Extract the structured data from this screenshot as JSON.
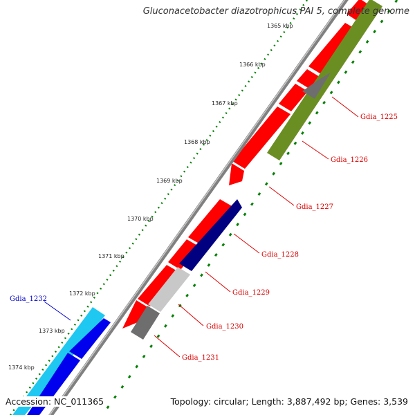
{
  "title": "Gluconacetobacter diazotrophicus PAI 5, complete genome",
  "footer": {
    "accession": "Accession: NC_011365",
    "summary": "Topology: circular; Length: 3,887,492 bp; Genes: 3,539"
  },
  "colors": {
    "red": "#ff0000",
    "olive": "#6b8e23",
    "navy": "#000080",
    "blue": "#0000ee",
    "light_blue": "#1ec8f0",
    "gray": "#6e6e6e",
    "light_gray": "#c8c8c8",
    "backbone": "#808080",
    "tick_green": "#008000",
    "label_red": "#dd0000",
    "label_blue": "#0000cc"
  },
  "ticks": [
    "1365 kbp",
    "1366 kbp",
    "1367 kbp",
    "1368 kbp",
    "1369 kbp",
    "1370 kbp",
    "1371 kbp",
    "1372 kbp",
    "1373 kbp",
    "1374 kbp"
  ],
  "gene_labels": [
    {
      "name": "Gdia_1225",
      "color": "red"
    },
    {
      "name": "Gdia_1226",
      "color": "red"
    },
    {
      "name": "Gdia_1227",
      "color": "red"
    },
    {
      "name": "Gdia_1228",
      "color": "red"
    },
    {
      "name": "Gdia_1229",
      "color": "red"
    },
    {
      "name": "Gdia_1230",
      "color": "red"
    },
    {
      "name": "Gdia_1231",
      "color": "red"
    },
    {
      "name": "Gdia_1232",
      "color": "blue"
    }
  ]
}
